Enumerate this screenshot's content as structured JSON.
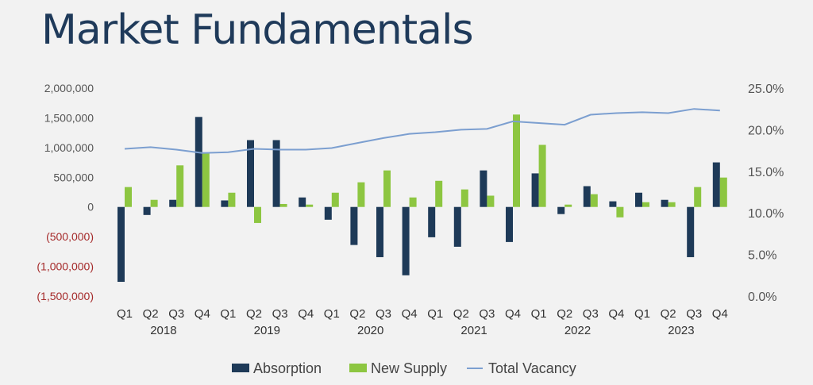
{
  "title": "Market Fundamentals",
  "chart_data": {
    "type": "bar+line",
    "categories": [
      "Q1",
      "Q2",
      "Q3",
      "Q4",
      "Q1",
      "Q2",
      "Q3",
      "Q4",
      "Q1",
      "Q2",
      "Q3",
      "Q4",
      "Q1",
      "Q2",
      "Q3",
      "Q4",
      "Q1",
      "Q2",
      "Q3",
      "Q4",
      "Q1",
      "Q2",
      "Q3",
      "Q4"
    ],
    "years": [
      "2018",
      "2019",
      "2020",
      "2021",
      "2022",
      "2023"
    ],
    "left_axis": {
      "ylim": [
        -1500000,
        2000000
      ],
      "ticks": [
        "2,000,000",
        "1,500,000",
        "1,000,000",
        "500,000",
        "0",
        "(500,000)",
        "(1,000,000)",
        "(1,500,000)"
      ],
      "negative_color": "#a52a2a"
    },
    "right_axis": {
      "ylim": [
        0,
        25
      ],
      "ticks": [
        "25.0%",
        "20.0%",
        "15.0%",
        "10.0%",
        "5.0%",
        "0.0%"
      ]
    },
    "series": [
      {
        "name": "Absorption",
        "type": "bar",
        "axis": "left",
        "color": "#1e3a58",
        "values": [
          -1260000,
          -135000,
          120000,
          1515000,
          110000,
          1125000,
          1125000,
          160000,
          -215000,
          -640000,
          -845000,
          -1150000,
          -510000,
          -670000,
          615000,
          -590000,
          565000,
          -120000,
          350000,
          95000,
          240000,
          120000,
          -845000,
          750000
        ]
      },
      {
        "name": "New Supply",
        "type": "bar",
        "axis": "left",
        "color": "#8dc641",
        "values": [
          335000,
          120000,
          700000,
          910000,
          240000,
          -270000,
          50000,
          40000,
          240000,
          415000,
          615000,
          160000,
          440000,
          295000,
          190000,
          1555000,
          1045000,
          40000,
          215000,
          -175000,
          80000,
          80000,
          335000,
          495000
        ]
      },
      {
        "name": "Total Vacancy",
        "type": "line",
        "axis": "right",
        "color": "#7c9fd0",
        "values": [
          17.7,
          17.9,
          17.6,
          17.2,
          17.3,
          17.7,
          17.6,
          17.6,
          17.8,
          18.4,
          19.0,
          19.5,
          19.7,
          20.0,
          20.1,
          21.0,
          20.8,
          20.6,
          21.8,
          22.0,
          22.1,
          22.0,
          22.5,
          22.3
        ]
      }
    ],
    "legend": "bottom",
    "grid": false
  }
}
